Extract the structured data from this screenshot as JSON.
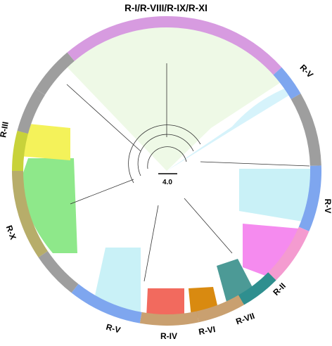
{
  "scale_bar": {
    "label": "4.0"
  },
  "clades": [
    {
      "id": "r-i-viii-ix-xi",
      "label": "R-I/R-VIII/R-IX/R-XI",
      "fill": "#eef9e6",
      "ring": "#d79be0"
    },
    {
      "id": "r-v-top",
      "label": "R-V",
      "fill": "#d6f3fb",
      "ring": "#7ea6ef"
    },
    {
      "id": "r-v-right",
      "label": "R-V",
      "fill": "#c9f1f7",
      "ring": "#7ea6ef"
    },
    {
      "id": "r-ii",
      "label": "R-II",
      "fill": "#f58bef",
      "ring": "#f49bd0"
    },
    {
      "id": "r-vii",
      "label": "R-VII",
      "fill": "#4c9a96",
      "ring": "#2f8f8f"
    },
    {
      "id": "r-vi",
      "label": "R-VI",
      "fill": "#d98a10",
      "ring": "#c9a070"
    },
    {
      "id": "r-iv",
      "label": "R-IV",
      "fill": "#f26a5e",
      "ring": "#c9a070"
    },
    {
      "id": "r-v-bottom",
      "label": "R-V",
      "fill": "#c9f1f7",
      "ring": "#7ea6ef"
    },
    {
      "id": "r-x",
      "label": "R-X",
      "fill": "#8ee88a",
      "ring": "#b7ad6a"
    },
    {
      "id": "r-iii",
      "label": "R-III",
      "fill": "#f4f25a",
      "ring": "#c8d23a"
    }
  ],
  "colors": {
    "unlabeled_ring": "#9e9e9e",
    "branch": "#333333"
  }
}
